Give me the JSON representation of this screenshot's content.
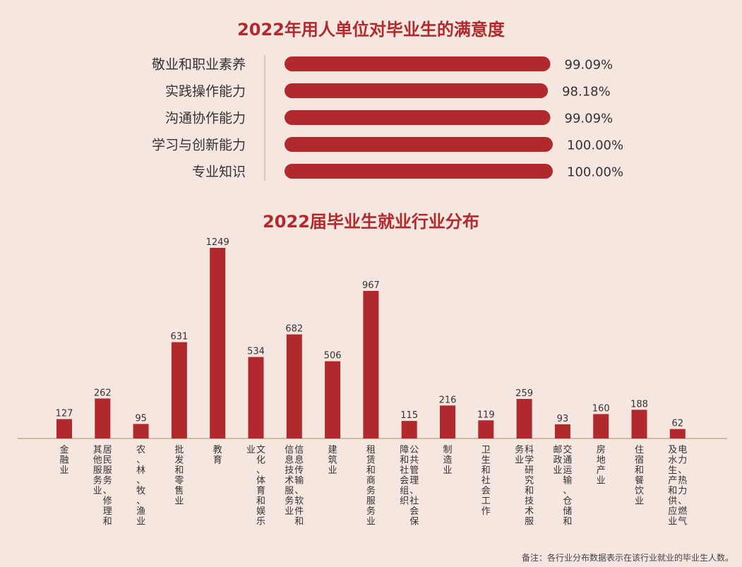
{
  "chart_data": [
    {
      "type": "bar",
      "orientation": "horizontal",
      "title": "2022年用人单位对毕业生的满意度",
      "categories": [
        "敬业和职业素养",
        "实践操作能力",
        "沟通协作能力",
        "学习与创新能力",
        "专业知识"
      ],
      "values": [
        99.09,
        98.18,
        99.09,
        100.0,
        100.0
      ],
      "value_labels": [
        "99.09%",
        "98.18%",
        "99.09%",
        "100.00%",
        "100.00%"
      ],
      "xlim": [
        0,
        100
      ],
      "grid": false
    },
    {
      "type": "bar",
      "title": "2022届毕业生就业行业分布",
      "categories": [
        "金融业",
        "居民服务、修理和其他服务业",
        "农、林、牧、渔业",
        "批发和零售业",
        "教育",
        "文化、体育和娱乐业",
        "信息传输、软件和信息技术服务业",
        "建筑业",
        "租赁和商务服务业",
        "公共管理、社会保障和社会组织",
        "制造业",
        "卫生和社会工作",
        "科学研究和技术服务业",
        "交通运输、仓储和邮政业",
        "房地产业",
        "住宿和餐饮业",
        "电力、热力、燃气及水生产和供应业"
      ],
      "values": [
        127,
        262,
        95,
        631,
        1249,
        534,
        682,
        506,
        967,
        115,
        216,
        119,
        259,
        93,
        160,
        188,
        62
      ],
      "ylim": [
        0,
        1300
      ],
      "grid": false
    }
  ],
  "note": "备注：各行业分布数据表示在该行业就业的毕业生人数。",
  "colors": {
    "bar": "#b02a2d",
    "background": "#f5e6df",
    "title": "#b02a2d",
    "axis": "#c8a98f",
    "text": "#333333"
  }
}
